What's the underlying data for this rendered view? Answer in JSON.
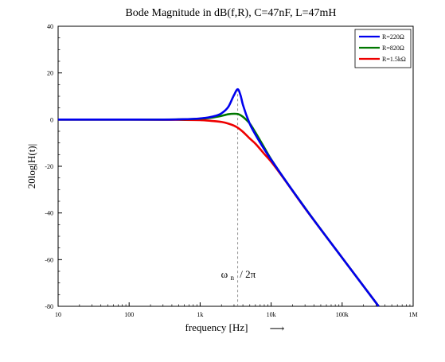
{
  "chart_data": {
    "type": "line",
    "title": "Bode Magnitude in dB(f,R), C=47nF, L=47mH",
    "xlabel": "frequency [Hz]",
    "xlabel_arrow": "⟶",
    "ylabel": "20log|H(t)|",
    "xscale": "log",
    "xlim": [
      10,
      1000000
    ],
    "ylim": [
      -80,
      40
    ],
    "x_ticks": [
      10,
      100,
      1000,
      10000,
      100000,
      1000000
    ],
    "x_tick_labels": [
      "10",
      "100",
      "1k",
      "10k",
      "100k",
      "1M"
    ],
    "y_ticks": [
      40,
      20,
      0,
      -20,
      -40,
      -60,
      -80
    ],
    "y_tick_labels": [
      "40",
      "20",
      "0",
      "-20",
      "-40",
      "-60",
      "-80"
    ],
    "grid": false,
    "legend_position": "top-right",
    "annotation": {
      "symbol": "ω",
      "subscript": "n",
      "rest": "/ 2π",
      "x": 3386
    },
    "series": [
      {
        "name": "R=220Ω",
        "color": "#0000ee",
        "points": [
          [
            10,
            0
          ],
          [
            100,
            0
          ],
          [
            500,
            0.1
          ],
          [
            1000,
            0.5
          ],
          [
            1500,
            1.3
          ],
          [
            2000,
            2.7
          ],
          [
            2500,
            5.5
          ],
          [
            3000,
            10.5
          ],
          [
            3386,
            13.0
          ],
          [
            3700,
            10.5
          ],
          [
            4000,
            6.4
          ],
          [
            5000,
            -1.8
          ],
          [
            6000,
            -6.4
          ],
          [
            8000,
            -12.7
          ],
          [
            10000,
            -17.2
          ],
          [
            30000,
            -37.9
          ],
          [
            100000,
            -59.2
          ],
          [
            327000,
            -80
          ]
        ]
      },
      {
        "name": "R=820Ω",
        "color": "#007700",
        "points": [
          [
            10,
            0
          ],
          [
            100,
            0
          ],
          [
            500,
            0.1
          ],
          [
            1000,
            0.4
          ],
          [
            1500,
            0.9
          ],
          [
            2000,
            1.6
          ],
          [
            2500,
            2.3
          ],
          [
            3000,
            2.5
          ],
          [
            3386,
            2.4
          ],
          [
            3700,
            1.9
          ],
          [
            4000,
            1.2
          ],
          [
            5000,
            -1.7
          ],
          [
            6000,
            -5.5
          ],
          [
            8000,
            -12.0
          ],
          [
            10000,
            -17.0
          ],
          [
            30000,
            -37.8
          ],
          [
            100000,
            -59.2
          ],
          [
            327000,
            -80
          ]
        ]
      },
      {
        "name": "R=1.5kΩ",
        "color": "#ee0000",
        "points": [
          [
            10,
            0
          ],
          [
            100,
            0
          ],
          [
            500,
            -0.1
          ],
          [
            1000,
            -0.2
          ],
          [
            1500,
            -0.6
          ],
          [
            2000,
            -1.0
          ],
          [
            2500,
            -1.7
          ],
          [
            3000,
            -2.6
          ],
          [
            3386,
            -3.5
          ],
          [
            4000,
            -5.2
          ],
          [
            5000,
            -8.1
          ],
          [
            6000,
            -10.3
          ],
          [
            8000,
            -14.7
          ],
          [
            10000,
            -18.0
          ],
          [
            30000,
            -38.0
          ],
          [
            100000,
            -59.2
          ],
          [
            327000,
            -80
          ]
        ]
      }
    ]
  }
}
